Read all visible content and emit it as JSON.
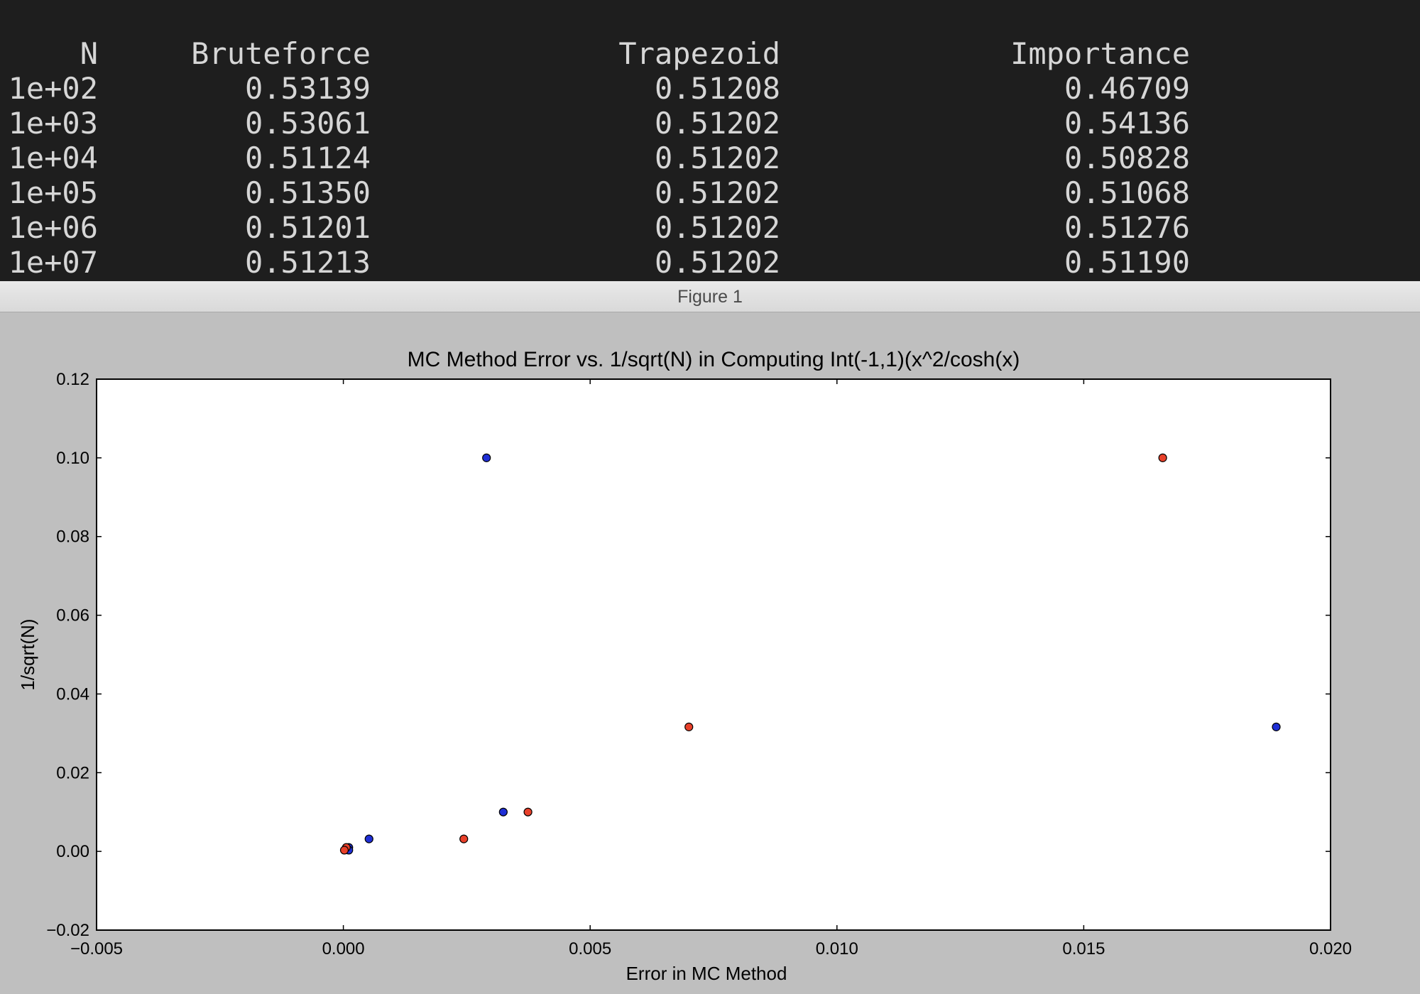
{
  "terminal": {
    "headers": [
      "N",
      "Bruteforce",
      "Trapezoid",
      "Importance"
    ],
    "rows": [
      [
        "1e+02",
        "0.53139",
        "0.51208",
        "0.46709"
      ],
      [
        "1e+03",
        "0.53061",
        "0.51202",
        "0.54136"
      ],
      [
        "1e+04",
        "0.51124",
        "0.51202",
        "0.50828"
      ],
      [
        "1e+05",
        "0.51350",
        "0.51202",
        "0.51068"
      ],
      [
        "1e+06",
        "0.51201",
        "0.51202",
        "0.51276"
      ],
      [
        "1e+07",
        "0.51213",
        "0.51202",
        "0.51190"
      ]
    ]
  },
  "window": {
    "title": "Figure 1"
  },
  "chart_data": {
    "type": "scatter",
    "title": "MC Method Error vs. 1/sqrt(N) in Computing Int(-1,1)(x^2/cosh(x)",
    "xlabel": "Error in MC Method",
    "ylabel": "1/sqrt(N)",
    "xlim": [
      -0.005,
      0.02
    ],
    "ylim": [
      -0.02,
      0.12
    ],
    "xticks": [
      -0.005,
      0.0,
      0.005,
      0.01,
      0.015,
      0.02
    ],
    "xtick_labels": [
      "−0.005",
      "0.000",
      "0.005",
      "0.010",
      "0.015",
      "0.020"
    ],
    "yticks": [
      -0.02,
      0.0,
      0.02,
      0.04,
      0.06,
      0.08,
      0.1,
      0.12
    ],
    "ytick_labels": [
      "−0.02",
      "0.00",
      "0.02",
      "0.04",
      "0.06",
      "0.08",
      "0.10",
      "0.12"
    ],
    "grid": false,
    "series": [
      {
        "color": "#1f2fd6",
        "x": [
          0.0029,
          0.0189,
          0.00324,
          0.00052,
          0.00011,
          0.00011
        ],
        "y": [
          0.1,
          0.031623,
          0.01,
          0.003162,
          0.001,
          0.000316
        ]
      },
      {
        "color": "#e8402a",
        "x": [
          0.0166,
          0.007,
          0.00374,
          0.00244,
          6e-05,
          2e-05
        ],
        "y": [
          0.1,
          0.031623,
          0.01,
          0.003162,
          0.001,
          0.000316
        ]
      }
    ]
  }
}
